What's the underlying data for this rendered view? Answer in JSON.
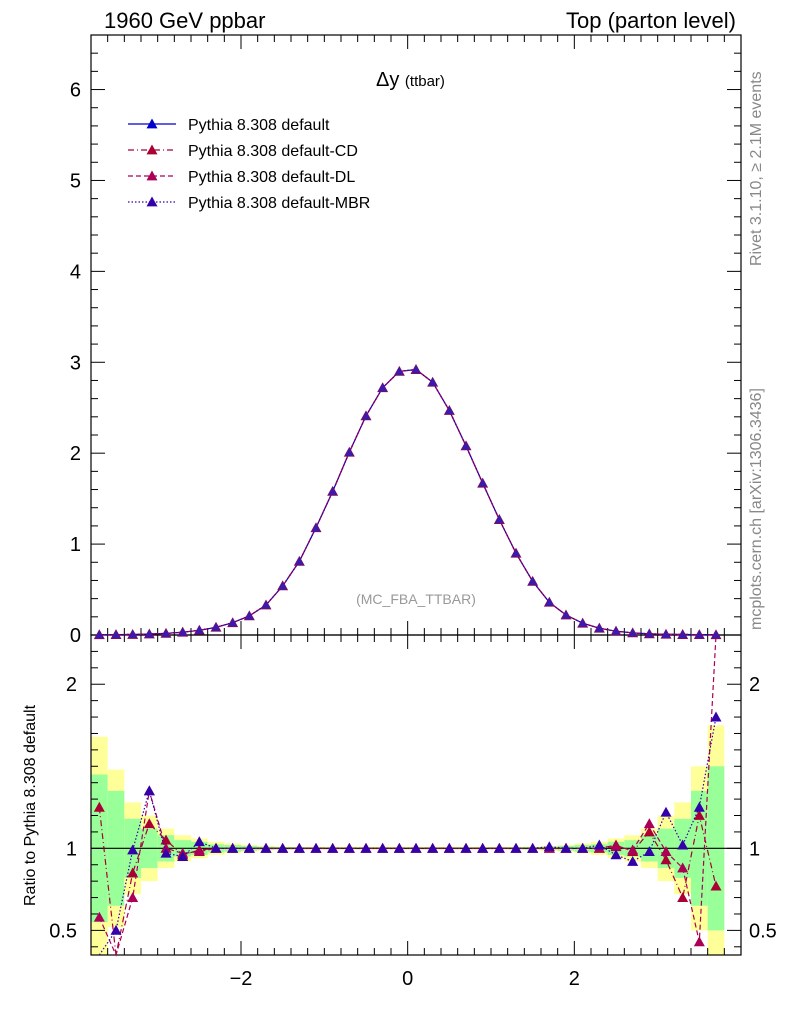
{
  "header": {
    "left": "1960 GeV ppbar",
    "right": "Top (parton level)"
  },
  "side_labels": {
    "rivet": "Rivet 3.1.10, ≥ 2.1M events",
    "mcplots": "mcplots.cern.ch [arXiv:1306.3436]"
  },
  "chart_data": [
    {
      "type": "line",
      "title": "Δy (ttbar)",
      "watermark": "(MC_FBA_TTBAR)",
      "ylim": [
        0,
        6.6
      ],
      "yticks": [
        0,
        1,
        2,
        3,
        4,
        5,
        6
      ],
      "xlim": [
        -3.8,
        4.0
      ],
      "legend_position": "top-left",
      "series": [
        {
          "name": "Pythia 8.308 default",
          "color": "#0000cc",
          "dash": "solid"
        },
        {
          "name": "Pythia 8.308 default-CD",
          "color": "#aa0033",
          "dash": "dash-dot"
        },
        {
          "name": "Pythia 8.308 default-DL",
          "color": "#aa0055",
          "dash": "dashed"
        },
        {
          "name": "Pythia 8.308 default-MBR",
          "color": "#3300aa",
          "dash": "dotted"
        }
      ],
      "x": [
        -3.7,
        -3.5,
        -3.3,
        -3.1,
        -2.9,
        -2.7,
        -2.5,
        -2.3,
        -2.1,
        -1.9,
        -1.7,
        -1.5,
        -1.3,
        -1.1,
        -0.9,
        -0.7,
        -0.5,
        -0.3,
        -0.1,
        0.1,
        0.3,
        0.5,
        0.7,
        0.9,
        1.1,
        1.3,
        1.5,
        1.7,
        1.9,
        2.1,
        2.3,
        2.5,
        2.7,
        2.9,
        3.1,
        3.3,
        3.5,
        3.7
      ],
      "values": [
        0.003,
        0.004,
        0.006,
        0.011,
        0.018,
        0.031,
        0.052,
        0.085,
        0.135,
        0.21,
        0.33,
        0.54,
        0.81,
        1.18,
        1.58,
        2.01,
        2.41,
        2.72,
        2.9,
        2.92,
        2.78,
        2.47,
        2.08,
        1.67,
        1.27,
        0.9,
        0.59,
        0.36,
        0.22,
        0.13,
        0.075,
        0.042,
        0.023,
        0.013,
        0.008,
        0.005,
        0.004,
        0.003
      ]
    },
    {
      "type": "line",
      "ylabel": "Ratio to Pythia 8.308 default",
      "ylim": [
        0.35,
        2.3
      ],
      "yticks": [
        0.5,
        1,
        2
      ],
      "xlim": [
        -3.8,
        4.0
      ],
      "xticks": [
        -2,
        0,
        2
      ],
      "x": [
        -3.7,
        -3.5,
        -3.3,
        -3.1,
        -2.9,
        -2.7,
        -2.5,
        -2.3,
        -2.1,
        -1.9,
        -1.7,
        -1.5,
        -1.3,
        -1.1,
        -0.9,
        -0.7,
        -0.5,
        -0.3,
        -0.1,
        0.1,
        0.3,
        0.5,
        0.7,
        0.9,
        1.1,
        1.3,
        1.5,
        1.7,
        1.9,
        2.1,
        2.3,
        2.5,
        2.7,
        2.9,
        3.1,
        3.3,
        3.5,
        3.7
      ],
      "band_yellow": [
        0.68,
        0.48,
        0.28,
        0.2,
        0.12,
        0.08,
        0.06,
        0.04,
        0.03,
        0.02,
        0.015,
        0.012,
        0.01,
        0.01,
        0.01,
        0.01,
        0.01,
        0.01,
        0.01,
        0.01,
        0.01,
        0.01,
        0.01,
        0.01,
        0.01,
        0.01,
        0.012,
        0.015,
        0.02,
        0.03,
        0.04,
        0.06,
        0.08,
        0.12,
        0.2,
        0.28,
        0.5,
        0.75
      ],
      "band_green": [
        0.45,
        0.35,
        0.18,
        0.12,
        0.08,
        0.05,
        0.04,
        0.025,
        0.02,
        0.015,
        0.01,
        0.008,
        0.007,
        0.006,
        0.006,
        0.006,
        0.006,
        0.006,
        0.006,
        0.006,
        0.006,
        0.006,
        0.006,
        0.006,
        0.006,
        0.007,
        0.008,
        0.01,
        0.015,
        0.02,
        0.025,
        0.04,
        0.05,
        0.08,
        0.12,
        0.18,
        0.35,
        0.5
      ],
      "series": [
        {
          "name": "Pythia 8.308 default-CD",
          "color": "#aa0033",
          "dash": "dash-dot",
          "values": [
            1.25,
            0.3,
            0.85,
            1.15,
            1.05,
            0.96,
            0.99,
            1.0,
            1.0,
            1.0,
            1.0,
            1.0,
            1.0,
            1.0,
            1.0,
            1.0,
            1.0,
            1.0,
            1.0,
            1.0,
            1.0,
            1.0,
            1.0,
            1.0,
            1.0,
            1.0,
            1.0,
            1.0,
            1.0,
            1.0,
            1.0,
            1.02,
            0.98,
            1.1,
            0.93,
            0.7,
            1.2,
            0.77
          ]
        },
        {
          "name": "Pythia 8.308 default-DL",
          "color": "#aa0055",
          "dash": "dashed",
          "values": [
            0.58,
            0.3,
            0.7,
            1.35,
            1.0,
            0.97,
            0.98,
            1.0,
            1.0,
            1.0,
            1.0,
            1.0,
            1.0,
            1.0,
            1.0,
            1.0,
            1.0,
            1.0,
            1.0,
            1.0,
            1.0,
            1.0,
            1.0,
            1.0,
            1.0,
            1.0,
            1.0,
            1.0,
            1.0,
            1.0,
            1.0,
            1.01,
            0.99,
            1.15,
            0.98,
            0.88,
            0.43,
            2.3
          ]
        },
        {
          "name": "Pythia 8.308 default-MBR",
          "color": "#3300aa",
          "dash": "dotted",
          "values": [
            0.3,
            0.5,
            0.99,
            1.35,
            0.97,
            0.95,
            1.04,
            1.0,
            1.0,
            1.0,
            1.0,
            1.0,
            1.0,
            1.0,
            1.0,
            1.0,
            1.0,
            1.0,
            1.0,
            1.0,
            1.0,
            1.0,
            1.0,
            1.0,
            1.0,
            1.0,
            1.0,
            1.01,
            1.0,
            1.0,
            1.02,
            0.96,
            0.92,
            0.98,
            1.22,
            1.02,
            1.25,
            1.8
          ]
        }
      ]
    }
  ]
}
